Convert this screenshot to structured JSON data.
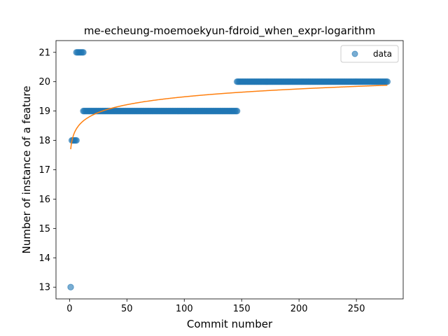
{
  "chart_data": {
    "type": "scatter",
    "title": "me-echeung-moemoekyun-fdroid_when_expr-logarithm",
    "xlabel": "Commit number",
    "ylabel": "Number of instance of a feature",
    "xlim": [
      -11.8,
      290.8
    ],
    "ylim": [
      12.6,
      21.4
    ],
    "xticks": [
      0,
      50,
      100,
      150,
      200,
      250
    ],
    "yticks": [
      13,
      14,
      15,
      16,
      17,
      18,
      19,
      20,
      21
    ],
    "grid": false,
    "legend_position": "top-right",
    "series": [
      {
        "name": "data",
        "kind": "points",
        "color": "#1f77b4",
        "points": [
          [
            1,
            13
          ],
          [
            2,
            18
          ],
          [
            3,
            18
          ],
          [
            4,
            18
          ],
          [
            5,
            18
          ],
          [
            6,
            18
          ],
          [
            6,
            21
          ],
          [
            7,
            21
          ],
          [
            8,
            21
          ],
          [
            9,
            21
          ],
          [
            10,
            21
          ],
          [
            11,
            21
          ],
          [
            12,
            21
          ],
          {
            "x_from": 12,
            "x_to": 146,
            "y": 19
          },
          {
            "x_from": 146,
            "x_to": 277,
            "y": 20
          }
        ]
      },
      {
        "name": "",
        "kind": "fit",
        "color": "#ff7f0e",
        "model": "logarithm",
        "x_range": [
          1,
          277
        ],
        "samples": [
          [
            1,
            17.7
          ],
          [
            5,
            18.4
          ],
          [
            10,
            18.7
          ],
          [
            25,
            19.05
          ],
          [
            50,
            19.25
          ],
          [
            100,
            19.5
          ],
          [
            150,
            19.65
          ],
          [
            200,
            19.75
          ],
          [
            277,
            19.88
          ]
        ]
      }
    ]
  }
}
